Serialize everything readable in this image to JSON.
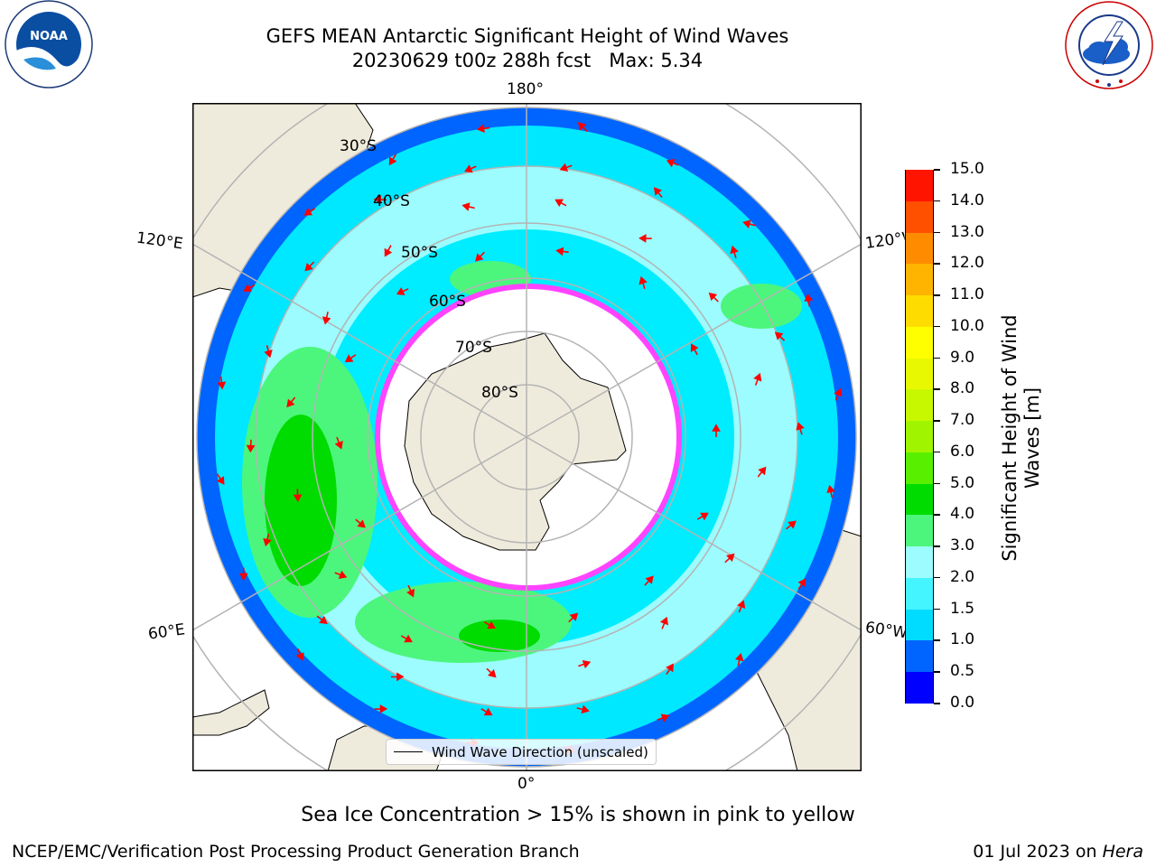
{
  "header": {
    "title": "GEFS MEAN Antarctic Significant Height of Wind Waves",
    "subtitle": "20230629 t00z 288h fcst   Max: 5.34"
  },
  "logos": {
    "left": {
      "text": "NOAA",
      "ring_text": "NATIONAL OCEANIC AND ATMOSPHERIC ADMINISTRATION · U.S. DEPARTMENT OF COMMERCE"
    },
    "right": {
      "ring_text": "NATIONAL WEATHER SERVICE"
    }
  },
  "map": {
    "projection": "south polar stereographic",
    "longitude_labels": {
      "top": "180°",
      "bottom": "0°",
      "upper_left": "120°E",
      "lower_left": "60°E",
      "upper_right": "120°W",
      "lower_right": "60°W"
    },
    "latitude_labels": [
      "30°S",
      "40°S",
      "50°S",
      "60°S",
      "70°S",
      "80°S"
    ],
    "legend": "Wind Wave Direction (unscaled)",
    "colors": {
      "land": "#efebdc",
      "ice_edge": "#ff44ff",
      "arrow": "#ff0000",
      "grid": "#b4b4b4"
    }
  },
  "colorbar": {
    "label": "Significant Height of Wind\nWaves [m]",
    "ticks": [
      "0.0",
      "0.5",
      "1.0",
      "1.5",
      "2.0",
      "3.0",
      "4.0",
      "5.0",
      "6.0",
      "7.0",
      "8.0",
      "9.0",
      "10.0",
      "11.0",
      "12.0",
      "13.0",
      "14.0",
      "15.0"
    ],
    "colors": [
      "#0000ff",
      "#0064ff",
      "#00dcff",
      "#44f4ff",
      "#9cfcff",
      "#4cf67c",
      "#00dc00",
      "#58f000",
      "#a0f400",
      "#c8f800",
      "#e8f800",
      "#ffff00",
      "#ffdc00",
      "#ffb400",
      "#ff8c00",
      "#ff5000",
      "#ff1400"
    ]
  },
  "footer": {
    "note": "Sea Ice Concentration > 15% is shown in pink to yellow",
    "credit": "NCEP/EMC/Verification Post Processing Product Generation Branch",
    "date_prefix": "01 Jul 2023 on ",
    "date_machine": "Hera"
  }
}
